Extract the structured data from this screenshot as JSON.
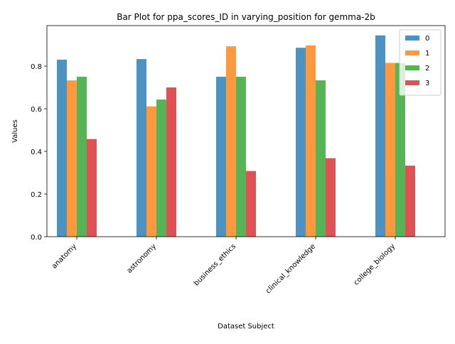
{
  "chart_data": {
    "type": "bar",
    "title": "Bar Plot for ppa_scores_ID in varying_position for gemma-2b",
    "xlabel": "Dataset Subject",
    "ylabel": "Values",
    "categories": [
      "anatomy",
      "astronomy",
      "business_ethics",
      "clinical_knowledge",
      "college_biology"
    ],
    "series": [
      {
        "name": "0",
        "color": "#1f77b4",
        "values": [
          0.83,
          0.833,
          0.75,
          0.886,
          0.944
        ]
      },
      {
        "name": "1",
        "color": "#ff7f0e",
        "values": [
          0.733,
          0.611,
          0.893,
          0.897,
          0.815
        ]
      },
      {
        "name": "2",
        "color": "#2ca02c",
        "values": [
          0.75,
          0.643,
          0.75,
          0.733,
          0.815
        ]
      },
      {
        "name": "3",
        "color": "#d62728",
        "values": [
          0.458,
          0.7,
          0.308,
          0.368,
          0.333
        ]
      }
    ],
    "ylim": [
      0,
      0.99
    ],
    "yticks": [
      0.0,
      0.2,
      0.4,
      0.6,
      0.8
    ],
    "ytick_labels": [
      "0.0",
      "0.2",
      "0.4",
      "0.6",
      "0.8"
    ],
    "legend_position": "top-right",
    "bar_alpha": 0.8,
    "grid": false
  }
}
